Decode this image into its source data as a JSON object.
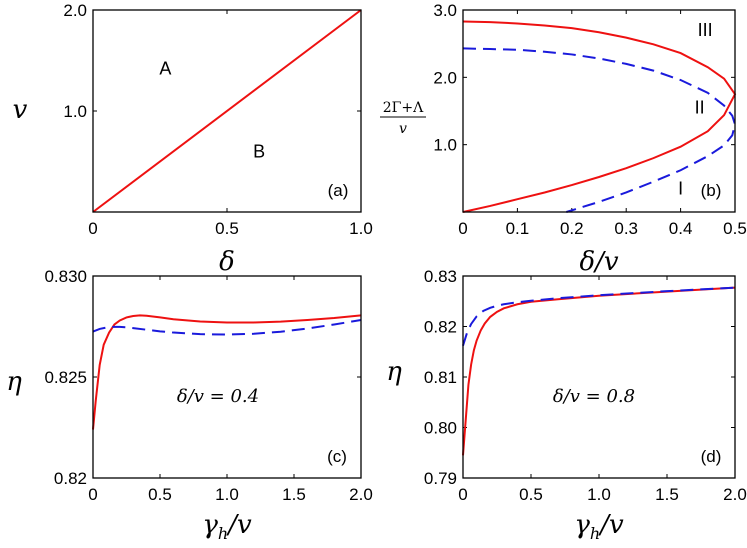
{
  "chart_data": [
    {
      "id": "a",
      "type": "line",
      "panel_label": "(a)",
      "xlabel": "δ",
      "ylabel": "v",
      "xlim": [
        0,
        1
      ],
      "ylim": [
        0,
        2
      ],
      "xticks": [
        0,
        0.5,
        1
      ],
      "xtick_labels": [
        "0",
        "0.5",
        "1.0"
      ],
      "yticks": [
        1,
        2
      ],
      "ytick_labels": [
        "1.0",
        "2.0"
      ],
      "series": [
        {
          "name": "boundary",
          "color": "#ee1111",
          "style": "solid",
          "x": [
            0,
            1
          ],
          "y": [
            0,
            2
          ]
        }
      ],
      "regions": [
        {
          "label": "A",
          "x": 0.27,
          "y": 1.42
        },
        {
          "label": "B",
          "x": 0.62,
          "y": 0.6
        }
      ]
    },
    {
      "id": "b",
      "type": "line",
      "panel_label": "(b)",
      "xlabel": "δ/v",
      "ylabel": "(2Γ+Λ)/v",
      "ylabel_num": "2Γ+Λ",
      "ylabel_den": "v",
      "xlim": [
        0,
        0.5
      ],
      "ylim": [
        0,
        3
      ],
      "xticks": [
        0,
        0.1,
        0.2,
        0.3,
        0.4,
        0.5
      ],
      "xtick_labels": [
        "0",
        "0.1",
        "0.2",
        "0.3",
        "0.4",
        "0.5"
      ],
      "yticks": [
        1,
        2,
        3
      ],
      "ytick_labels": [
        "1.0",
        "2.0",
        "3.0"
      ],
      "series": [
        {
          "name": "red",
          "color": "#ee1111",
          "style": "solid",
          "x": [
            0,
            0.05,
            0.1,
            0.15,
            0.2,
            0.25,
            0.3,
            0.35,
            0.4,
            0.45,
            0.48,
            0.5,
            0.48,
            0.45,
            0.4,
            0.35,
            0.3,
            0.25,
            0.2,
            0.15,
            0.1,
            0.05,
            0
          ],
          "y": [
            2.83,
            2.82,
            2.8,
            2.77,
            2.73,
            2.67,
            2.59,
            2.49,
            2.36,
            2.15,
            1.98,
            1.75,
            1.44,
            1.2,
            0.97,
            0.8,
            0.65,
            0.52,
            0.4,
            0.29,
            0.19,
            0.09,
            0.0
          ]
        },
        {
          "name": "blue",
          "color": "#1a1adc",
          "style": "dashed",
          "x": [
            0,
            0.05,
            0.1,
            0.15,
            0.2,
            0.25,
            0.3,
            0.35,
            0.4,
            0.45,
            0.48,
            0.495,
            0.5,
            0.495,
            0.48,
            0.45,
            0.4,
            0.35,
            0.3,
            0.25,
            0.19
          ],
          "y": [
            2.43,
            2.42,
            2.41,
            2.38,
            2.34,
            2.28,
            2.2,
            2.1,
            1.96,
            1.77,
            1.58,
            1.43,
            1.3,
            1.14,
            0.99,
            0.83,
            0.62,
            0.45,
            0.29,
            0.15,
            0.0
          ]
        }
      ],
      "regions": [
        {
          "label": "III",
          "x": 0.445,
          "y": 2.7
        },
        {
          "label": "II",
          "x": 0.435,
          "y": 1.55
        },
        {
          "label": "I",
          "x": 0.4,
          "y": 0.35
        }
      ]
    },
    {
      "id": "c",
      "type": "line",
      "panel_label": "(c)",
      "xlabel": "γh/v",
      "xlabel_main": "γ",
      "xlabel_sub": "h",
      "xlabel_tail": "/v",
      "ylabel": "η",
      "annotation": "δ/v = 0.4",
      "xlim": [
        0,
        2
      ],
      "ylim": [
        0.82,
        0.83
      ],
      "xticks": [
        0,
        0.5,
        1,
        1.5,
        2
      ],
      "xtick_labels": [
        "0",
        "0.5",
        "1.0",
        "1.5",
        "2.0"
      ],
      "yticks": [
        0.82,
        0.825,
        0.83
      ],
      "ytick_labels": [
        "0.82",
        "0.825",
        "0.830"
      ],
      "series": [
        {
          "name": "red",
          "color": "#ee1111",
          "style": "solid",
          "x": [
            0,
            0.02,
            0.05,
            0.08,
            0.12,
            0.16,
            0.2,
            0.25,
            0.3,
            0.35,
            0.4,
            0.5,
            0.6,
            0.8,
            1.0,
            1.2,
            1.4,
            1.6,
            1.8,
            2.0
          ],
          "y": [
            0.8224,
            0.8238,
            0.8256,
            0.8266,
            0.8272,
            0.8276,
            0.8278,
            0.82795,
            0.82802,
            0.82805,
            0.82803,
            0.82795,
            0.82786,
            0.82775,
            0.8277,
            0.8277,
            0.82774,
            0.82782,
            0.82792,
            0.82805
          ]
        },
        {
          "name": "blue",
          "color": "#1a1adc",
          "style": "dashed",
          "x": [
            0,
            0.05,
            0.1,
            0.15,
            0.2,
            0.25,
            0.3,
            0.4,
            0.5,
            0.6,
            0.8,
            1.0,
            1.2,
            1.4,
            1.6,
            1.8,
            2.0
          ],
          "y": [
            0.82725,
            0.82738,
            0.82745,
            0.82748,
            0.82748,
            0.82746,
            0.82742,
            0.82734,
            0.82726,
            0.8272,
            0.82712,
            0.8271,
            0.82714,
            0.82724,
            0.8274,
            0.8276,
            0.82782
          ]
        }
      ]
    },
    {
      "id": "d",
      "type": "line",
      "panel_label": "(d)",
      "xlabel": "γh/v",
      "xlabel_main": "γ",
      "xlabel_sub": "h",
      "xlabel_tail": "/v",
      "ylabel": "η",
      "annotation": "δ/v = 0.8",
      "xlim": [
        0,
        2
      ],
      "ylim": [
        0.79,
        0.83
      ],
      "xticks": [
        0,
        0.5,
        1,
        1.5,
        2
      ],
      "xtick_labels": [
        "0",
        "0.5",
        "1.0",
        "1.5",
        "2.0"
      ],
      "yticks": [
        0.79,
        0.8,
        0.81,
        0.82,
        0.83
      ],
      "ytick_labels": [
        "0.79",
        "0.80",
        "0.81",
        "0.82",
        "0.83"
      ],
      "series": [
        {
          "name": "red",
          "color": "#ee1111",
          "style": "solid",
          "x": [
            0,
            0.02,
            0.04,
            0.06,
            0.08,
            0.1,
            0.13,
            0.16,
            0.2,
            0.25,
            0.3,
            0.4,
            0.5,
            0.7,
            1.0,
            1.5,
            2.0
          ],
          "y": [
            0.7945,
            0.8015,
            0.8085,
            0.8125,
            0.8153,
            0.8172,
            0.8192,
            0.8206,
            0.8219,
            0.8229,
            0.8236,
            0.8244,
            0.8249,
            0.8254,
            0.8261,
            0.8269,
            0.8277
          ]
        },
        {
          "name": "blue",
          "color": "#1a1adc",
          "style": "dashed",
          "x": [
            0,
            0.03,
            0.06,
            0.1,
            0.15,
            0.2,
            0.25,
            0.3,
            0.4,
            0.5,
            0.7,
            1.0,
            1.5,
            2.0
          ],
          "y": [
            0.8162,
            0.8188,
            0.8205,
            0.822,
            0.8231,
            0.8237,
            0.8241,
            0.8244,
            0.8248,
            0.8251,
            0.8256,
            0.8262,
            0.827,
            0.8277
          ]
        }
      ]
    }
  ]
}
